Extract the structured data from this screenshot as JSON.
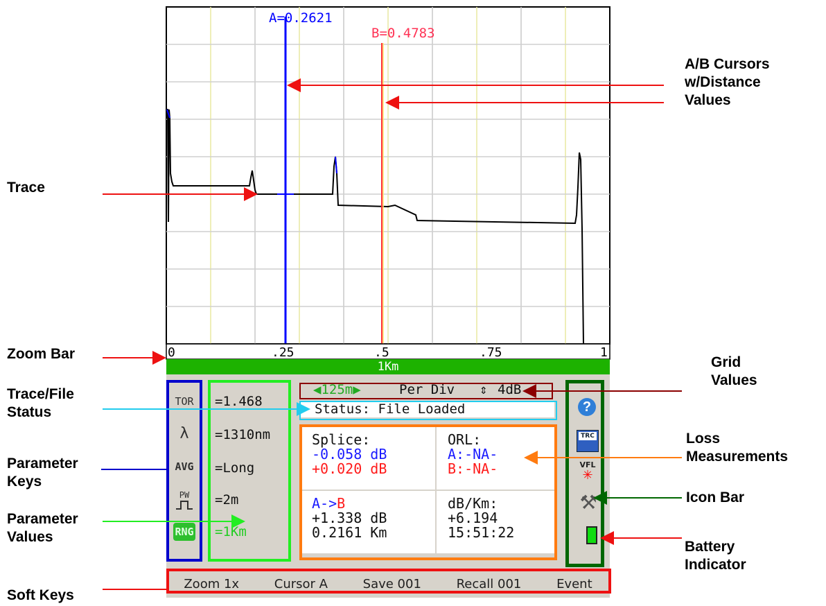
{
  "cursors": {
    "a_label": "A=0.2621",
    "b_label": "B=0.4783",
    "a_color": "#0000ff",
    "b_color": "#ff0000"
  },
  "trace": {
    "color": "#000000",
    "distance_km": [
      0.0,
      0.005,
      0.01,
      0.19,
      0.2,
      0.21,
      0.37,
      0.38,
      0.4,
      0.58,
      0.6,
      0.93,
      0.95,
      0.96
    ],
    "note": "relative trace levels read off the graph"
  },
  "zoom_bar": {
    "ticks": [
      "0",
      ".25",
      ".5",
      ".75",
      "1"
    ],
    "span_label": "1Km"
  },
  "parameters": {
    "keys": [
      "TOR",
      "λ",
      "AVG",
      "PW",
      "RNG"
    ],
    "values": [
      "=1.468",
      "=1310nm",
      "=Long",
      "=2m",
      "=1Km"
    ]
  },
  "grid_values": {
    "distance": "◀125m▶",
    "label": "Per Div",
    "db": "4dB"
  },
  "status": "Status: File Loaded",
  "loss": {
    "splice_title": "Splice:",
    "splice_a": "-0.058 dB",
    "splice_b": "+0.020 dB",
    "orl_title": "ORL:",
    "orl_a": "A:-NA-",
    "orl_b": "B:-NA-",
    "ab_prefix": "A->",
    "ab_suffix": "B",
    "ab_loss": "+1.338 dB",
    "ab_dist": "0.2161 Km",
    "dbkm_title": "dB/Km:",
    "dbkm_value": "+6.194",
    "time": "15:51:22"
  },
  "icons": [
    "help-icon",
    "trc-save-icon",
    "vfl-icon",
    "tools-icon"
  ],
  "icon_text": {
    "trc": "TRC",
    "vfl": "VFL"
  },
  "soft_keys": [
    "Zoom 1x",
    "Cursor A",
    "Save 001",
    "Recall 001",
    "Event"
  ],
  "annotations": {
    "cursors": "A/B Cursors\nw/Distance\nValues",
    "trace": "Trace",
    "zoom_bar": "Zoom Bar",
    "grid_values": "Grid\nValues",
    "trace_file_status": "Trace/File\nStatus",
    "loss": "Loss\nMeasurements",
    "param_keys": "Parameter\nKeys",
    "icon_bar": "Icon Bar",
    "param_values": "Parameter\nValues",
    "battery": "Battery\nIndicator",
    "soft_keys": "Soft Keys"
  },
  "annotation_colors": {
    "red": "#ee1111",
    "darkred": "#8b0000",
    "cyan": "#22ccee",
    "orange": "#ff7b10",
    "blue": "#0000cc",
    "green": "#006600",
    "lime": "#22ee22"
  }
}
